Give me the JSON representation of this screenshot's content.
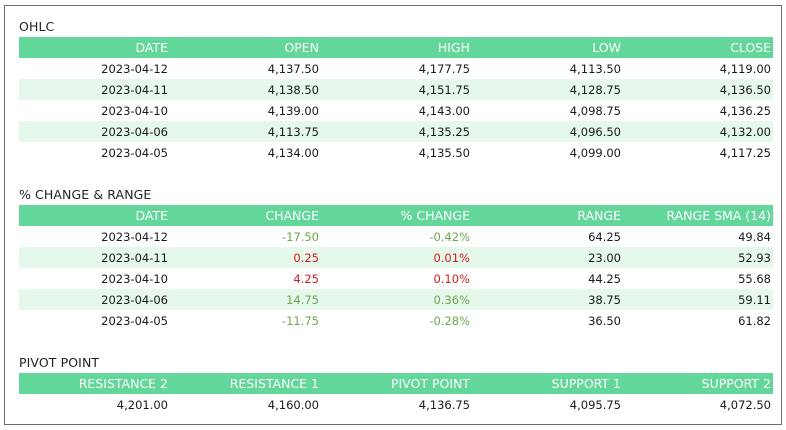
{
  "colors": {
    "header_bg": "#63d69a",
    "stripe_bg": "#e6f7ec",
    "negative": "#6aa84f",
    "positive": "#cc1f1f"
  },
  "ohlc": {
    "title": "OHLC",
    "headers": [
      "DATE",
      "OPEN",
      "HIGH",
      "LOW",
      "CLOSE"
    ],
    "rows": [
      [
        "2023-04-12",
        "4,137.50",
        "4,177.75",
        "4,113.50",
        "4,119.00"
      ],
      [
        "2023-04-11",
        "4,138.50",
        "4,151.75",
        "4,128.75",
        "4,136.50"
      ],
      [
        "2023-04-10",
        "4,139.00",
        "4,143.00",
        "4,098.75",
        "4,136.25"
      ],
      [
        "2023-04-06",
        "4,113.75",
        "4,135.25",
        "4,096.50",
        "4,132.00"
      ],
      [
        "2023-04-05",
        "4,134.00",
        "4,135.50",
        "4,099.00",
        "4,117.25"
      ]
    ]
  },
  "change": {
    "title": "% CHANGE & RANGE",
    "headers": [
      "DATE",
      "CHANGE",
      "% CHANGE",
      "RANGE",
      "RANGE SMA (14)"
    ],
    "rows": [
      [
        "2023-04-12",
        "-17.50",
        "-0.42%",
        "64.25",
        "49.84"
      ],
      [
        "2023-04-11",
        "0.25",
        "0.01%",
        "23.00",
        "52.93"
      ],
      [
        "2023-04-10",
        "4.25",
        "0.10%",
        "44.25",
        "55.68"
      ],
      [
        "2023-04-06",
        "14.75",
        "0.36%",
        "38.75",
        "59.11"
      ],
      [
        "2023-04-05",
        "-11.75",
        "-0.28%",
        "36.50",
        "61.82"
      ]
    ]
  },
  "pivot": {
    "title": "PIVOT POINT",
    "headers": [
      "RESISTANCE 2",
      "RESISTANCE 1",
      "PIVOT POINT",
      "SUPPORT 1",
      "SUPPORT 2"
    ],
    "row": [
      "4,201.00",
      "4,160.00",
      "4,136.75",
      "4,095.75",
      "4,072.50"
    ]
  }
}
